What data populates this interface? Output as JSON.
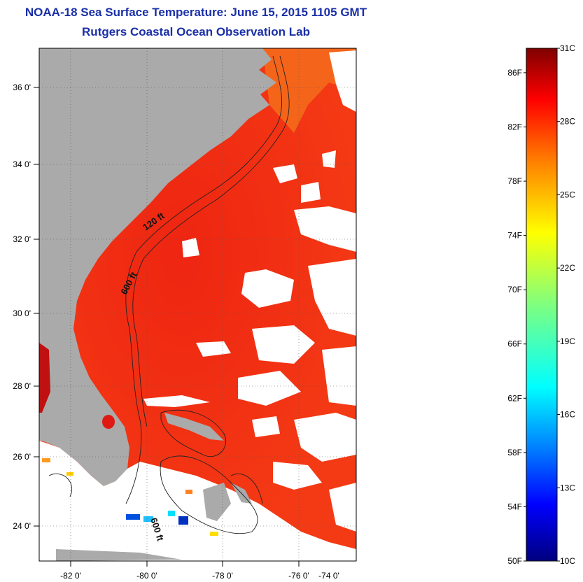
{
  "header": {
    "title": "NOAA-18 Sea Surface Temperature:  June 15, 2015 1105 GMT",
    "subtitle": "Rutgers Coastal Ocean Observation Lab"
  },
  "map": {
    "lon_ticks": [
      {
        "value": -82,
        "label": "-82 0'"
      },
      {
        "value": -80,
        "label": "-80 0'"
      },
      {
        "value": -78,
        "label": "-78 0'"
      },
      {
        "value": -76,
        "label": "-76 0'"
      },
      {
        "value": -74,
        "label": "-74 0'"
      }
    ],
    "lat_ticks": [
      {
        "value": 36,
        "label": "36 0'"
      },
      {
        "value": 34,
        "label": "34 0'"
      },
      {
        "value": 32,
        "label": "32 0'"
      },
      {
        "value": 30,
        "label": "30 0'"
      },
      {
        "value": 28,
        "label": "28 0'"
      },
      {
        "value": 26,
        "label": "26 0'"
      },
      {
        "value": 24,
        "label": "24 0'"
      }
    ],
    "contour_labels": [
      "120 ft",
      "600 ft",
      "600 ft"
    ],
    "colors": {
      "land": "#aaaaaa",
      "sst_warm": "#f22a10",
      "sst_coast": "#f45a18",
      "cloud": "#ffffff"
    }
  },
  "colorbar": {
    "fahrenheit": [
      "86F",
      "82F",
      "78F",
      "74F",
      "70F",
      "66F",
      "62F",
      "58F",
      "54F",
      "50F"
    ],
    "celsius": [
      "31C",
      "28C",
      "25C",
      "22C",
      "19C",
      "16C",
      "13C",
      "10C"
    ],
    "colormap": "jet"
  }
}
